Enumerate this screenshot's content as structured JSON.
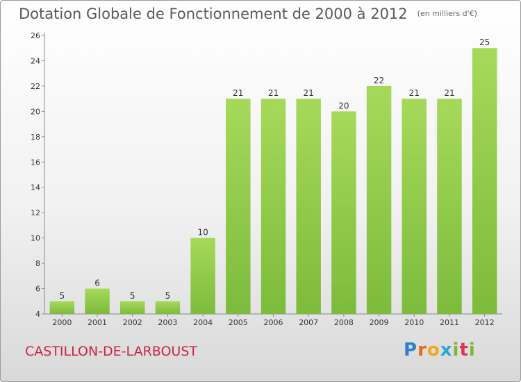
{
  "title": "Dotation Globale de Fonctionnement de 2000 à 2012",
  "unit_note": "(en milliers d'€)",
  "commune": "CASTILLON-DE-LARBOUST",
  "logo": {
    "letters": [
      "P",
      "r",
      "o",
      "x",
      "i",
      "t",
      "i"
    ],
    "colors": [
      "#2a7fd0",
      "#e36a1a",
      "#f2a81d",
      "#2aa7d8",
      "#7ab833",
      "#d8394e",
      "#7ab833"
    ]
  },
  "chart_data": {
    "type": "bar",
    "title": "Dotation Globale de Fonctionnement de 2000 à 2012",
    "subtitle": "(en milliers d'€)",
    "xlabel": "",
    "ylabel": "",
    "categories": [
      "2000",
      "2001",
      "2002",
      "2003",
      "2004",
      "2005",
      "2006",
      "2007",
      "2008",
      "2009",
      "2010",
      "2011",
      "2012"
    ],
    "values": [
      5,
      6,
      5,
      5,
      10,
      21,
      21,
      21,
      20,
      22,
      21,
      21,
      25
    ],
    "ylim": [
      4,
      26
    ],
    "yticks": [
      4,
      6,
      8,
      10,
      12,
      14,
      16,
      18,
      20,
      22,
      24,
      26
    ],
    "grid": false,
    "legend": "none",
    "bar_color": "#7dbb3c",
    "bar_top_color": "#a6d95a",
    "axis_color": "#888888"
  }
}
